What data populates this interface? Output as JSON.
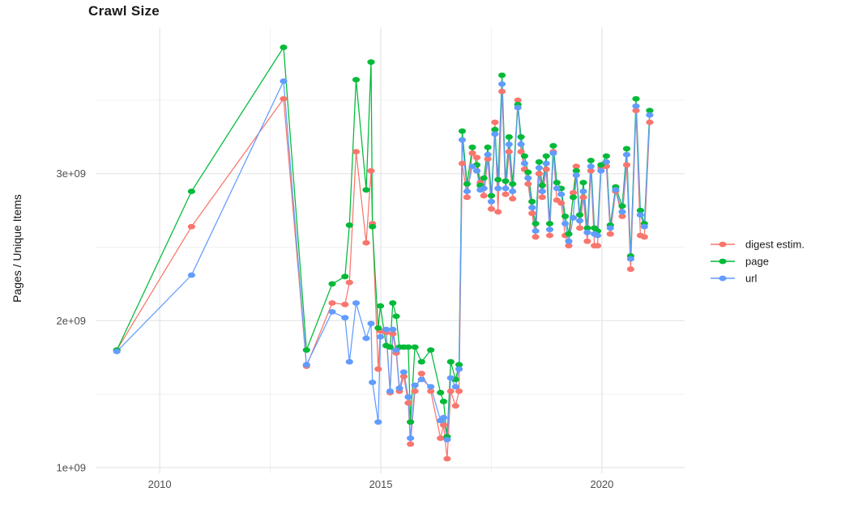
{
  "page": {
    "title": "Crawl Size"
  },
  "chart_data": {
    "type": "line",
    "title": "Crawl Size",
    "xlabel": "",
    "ylabel": "Pages / Unique Items",
    "value_unit": "1e9",
    "grid": "major and minor, light gray on white, no panel border",
    "legend_position": "right",
    "xlim": [
      2008.55,
      2021.87
    ],
    "ylim_billions": [
      0.961,
      3.995
    ],
    "x_major_ticks": [
      {
        "label": "2010",
        "value": 2010
      },
      {
        "label": "2015",
        "value": 2015
      },
      {
        "label": "2020",
        "value": 2020
      }
    ],
    "x_minor_ticks": [
      2012.5,
      2017.5
    ],
    "y_major_ticks": [
      {
        "label": "1e+09",
        "value": 1
      },
      {
        "label": "2e+09",
        "value": 2
      },
      {
        "label": "3e+09",
        "value": 3
      }
    ],
    "y_minor_ticks": [
      1.5,
      2.5,
      3.5
    ],
    "x_years": [
      2009.03,
      2010.72,
      2012.8,
      2013.32,
      2013.9,
      2014.19,
      2014.29,
      2014.44,
      2014.67,
      2014.78,
      2014.81,
      2014.94,
      2014.99,
      2015.12,
      2015.21,
      2015.27,
      2015.35,
      2015.42,
      2015.52,
      2015.62,
      2015.67,
      2015.77,
      2015.92,
      2016.13,
      2016.35,
      2016.42,
      2016.5,
      2016.58,
      2016.69,
      2016.77,
      2016.84,
      2016.95,
      2017.07,
      2017.17,
      2017.25,
      2017.33,
      2017.42,
      2017.5,
      2017.58,
      2017.65,
      2017.74,
      2017.82,
      2017.9,
      2017.98,
      2018.1,
      2018.17,
      2018.25,
      2018.33,
      2018.42,
      2018.5,
      2018.58,
      2018.65,
      2018.74,
      2018.82,
      2018.9,
      2018.98,
      2019.08,
      2019.17,
      2019.25,
      2019.35,
      2019.42,
      2019.5,
      2019.58,
      2019.67,
      2019.75,
      2019.83,
      2019.9,
      2019.98,
      2020.1,
      2020.19,
      2020.31,
      2020.46,
      2020.56,
      2020.65,
      2020.77,
      2020.87,
      2020.96,
      2021.08
    ],
    "series": [
      {
        "name": "digest estim.",
        "color": "#F8766D",
        "values_billions": [
          1.8,
          2.64,
          3.51,
          1.69,
          2.12,
          2.11,
          2.26,
          3.15,
          2.53,
          3.02,
          2.66,
          1.67,
          1.93,
          1.92,
          1.51,
          1.91,
          1.78,
          1.52,
          1.62,
          1.44,
          1.16,
          1.52,
          1.64,
          1.52,
          1.2,
          1.29,
          1.06,
          1.52,
          1.42,
          1.52,
          3.07,
          2.84,
          3.14,
          3.11,
          2.94,
          2.85,
          3.1,
          2.76,
          3.35,
          2.74,
          3.56,
          2.86,
          3.15,
          2.83,
          3.5,
          3.15,
          3.03,
          2.93,
          2.73,
          2.57,
          3.0,
          2.84,
          3.03,
          2.58,
          3.15,
          2.82,
          2.8,
          2.58,
          2.51,
          2.87,
          3.05,
          2.63,
          2.84,
          2.54,
          3.02,
          2.51,
          2.51,
          3.04,
          3.05,
          2.59,
          2.88,
          2.71,
          3.06,
          2.35,
          3.43,
          2.58,
          2.57,
          3.35
        ]
      },
      {
        "name": "page",
        "color": "#00BA38",
        "values_billions": [
          1.8,
          2.88,
          3.86,
          1.8,
          2.25,
          2.3,
          2.65,
          3.64,
          2.89,
          3.76,
          2.64,
          1.95,
          2.1,
          1.83,
          1.82,
          2.12,
          2.03,
          1.82,
          1.82,
          1.82,
          1.31,
          1.82,
          1.72,
          1.8,
          1.51,
          1.45,
          1.21,
          1.72,
          1.6,
          1.7,
          3.29,
          2.93,
          3.18,
          3.06,
          2.92,
          2.97,
          3.18,
          2.85,
          3.3,
          2.96,
          3.67,
          2.95,
          3.25,
          2.93,
          3.47,
          3.25,
          3.12,
          3.01,
          2.81,
          2.66,
          3.08,
          2.92,
          3.12,
          2.66,
          3.19,
          2.94,
          2.9,
          2.71,
          2.59,
          2.84,
          3.02,
          2.72,
          2.94,
          2.63,
          3.09,
          2.63,
          2.61,
          3.06,
          3.12,
          2.65,
          2.91,
          2.78,
          3.17,
          2.44,
          3.51,
          2.75,
          2.66,
          3.43
        ]
      },
      {
        "name": "url",
        "color": "#619CFF",
        "values_billions": [
          1.79,
          2.31,
          3.63,
          1.7,
          2.06,
          2.02,
          1.72,
          2.12,
          1.88,
          1.98,
          1.58,
          1.31,
          1.89,
          1.94,
          1.52,
          1.94,
          1.8,
          1.54,
          1.65,
          1.48,
          1.2,
          1.56,
          1.6,
          1.55,
          1.32,
          1.34,
          1.19,
          1.61,
          1.55,
          1.67,
          3.23,
          2.88,
          3.05,
          3.02,
          2.89,
          2.9,
          3.13,
          2.81,
          3.27,
          2.9,
          3.61,
          2.9,
          3.2,
          2.88,
          3.45,
          3.2,
          3.07,
          2.97,
          2.77,
          2.61,
          3.04,
          2.88,
          3.07,
          2.62,
          3.14,
          2.9,
          2.86,
          2.66,
          2.54,
          2.7,
          2.99,
          2.68,
          2.88,
          2.6,
          3.05,
          2.59,
          2.58,
          3.02,
          3.08,
          2.63,
          2.89,
          2.74,
          3.13,
          2.42,
          3.46,
          2.72,
          2.64,
          3.4
        ]
      }
    ]
  }
}
